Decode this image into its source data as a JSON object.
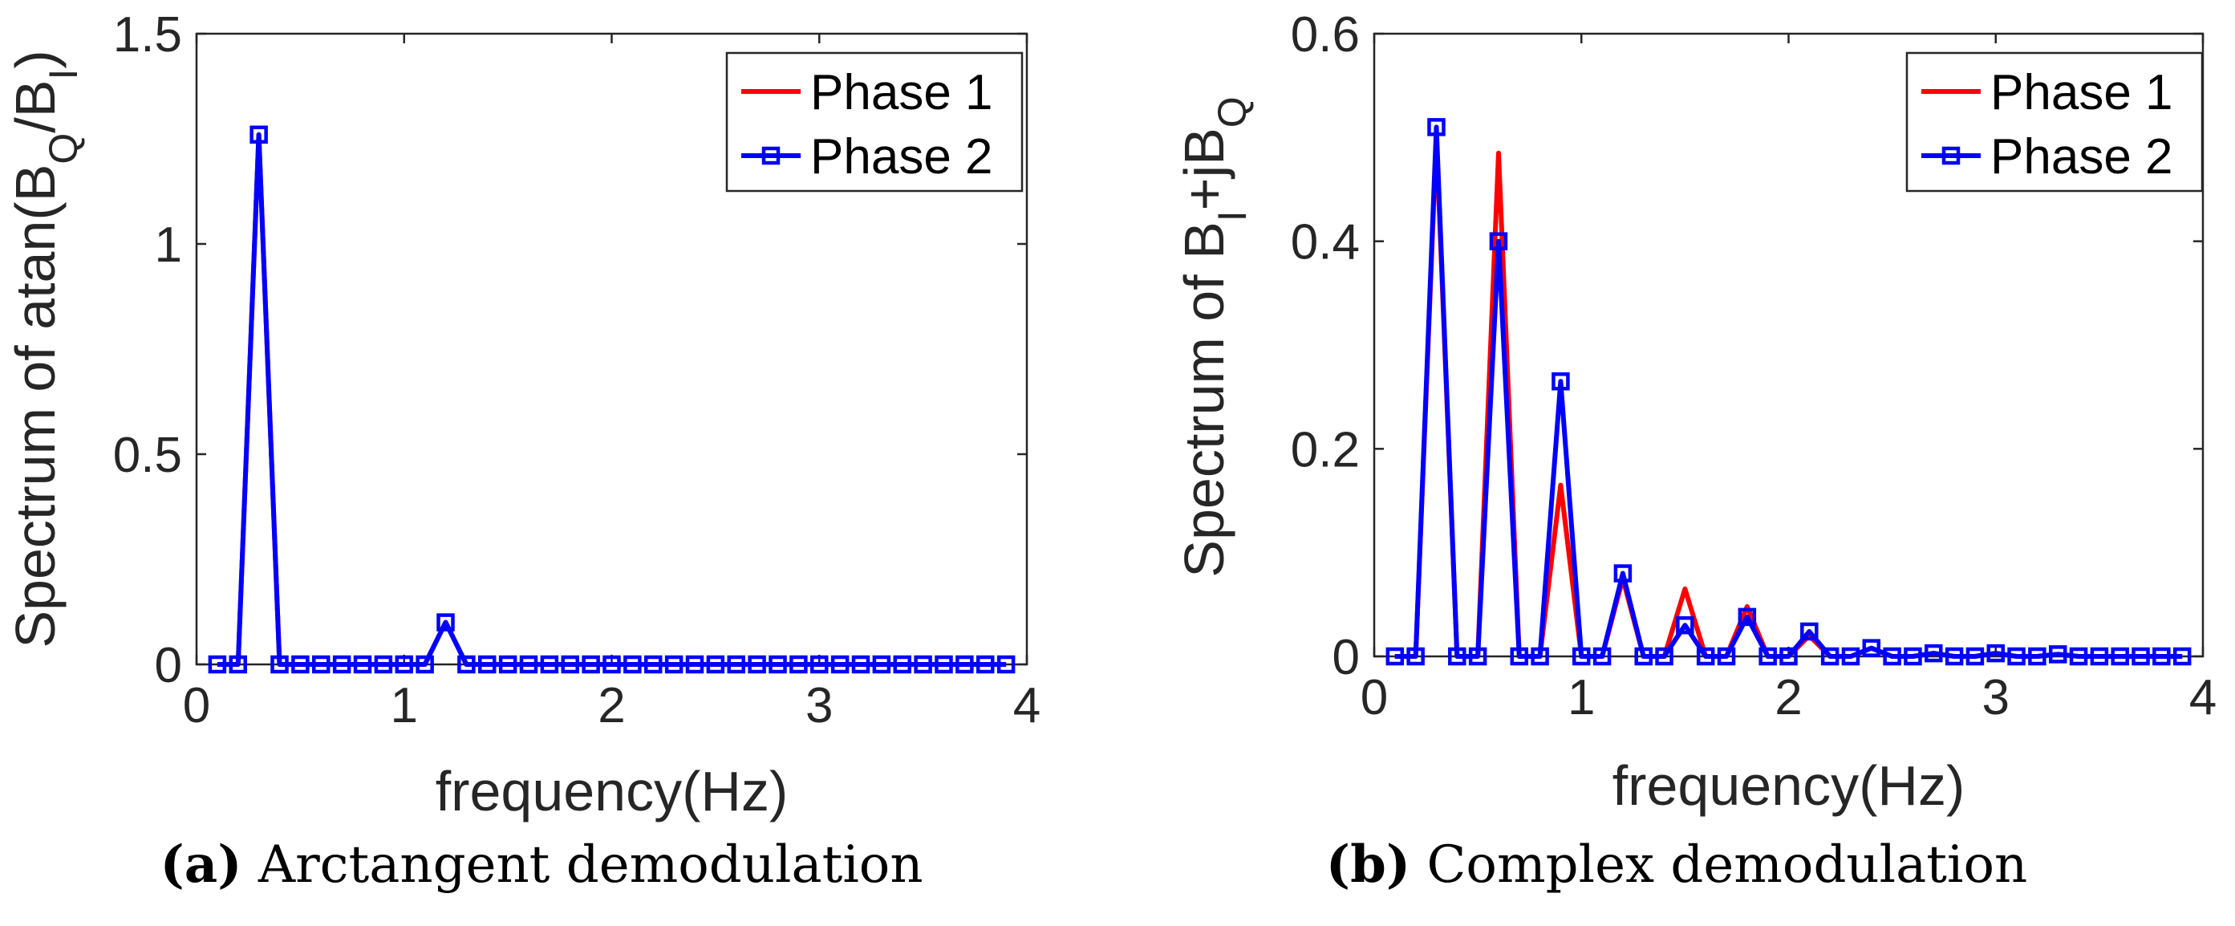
{
  "chart_data": [
    {
      "type": "line",
      "panel": "a",
      "title": "",
      "xlabel": "frequency(Hz)",
      "ylabel_parts": {
        "pre": "Spectrum of atan(B",
        "sub1": "Q",
        "mid": "/B",
        "sub2": "I",
        "post": ")"
      },
      "xlim": [
        0,
        4
      ],
      "ylim": [
        0,
        1.5
      ],
      "xticks": [
        0,
        1,
        2,
        3,
        4
      ],
      "xtick_labels": [
        "0",
        "1",
        "2",
        "3",
        "4"
      ],
      "yticks": [
        0,
        0.5,
        1,
        1.5
      ],
      "ytick_labels": [
        "0",
        "0.5",
        "1",
        "1.5"
      ],
      "grid": false,
      "legend_position": "top-right",
      "x": [
        0.1,
        0.2,
        0.3,
        0.4,
        0.5,
        0.6,
        0.7,
        0.8,
        0.9,
        1.0,
        1.1,
        1.2,
        1.3,
        1.4,
        1.5,
        1.6,
        1.7,
        1.8,
        1.9,
        2.0,
        2.1,
        2.2,
        2.3,
        2.4,
        2.5,
        2.6,
        2.7,
        2.8,
        2.9,
        3.0,
        3.1,
        3.2,
        3.3,
        3.4,
        3.5,
        3.6,
        3.7,
        3.8,
        3.9
      ],
      "series": [
        {
          "name": "Phase 1",
          "color": "#ff0000",
          "marker": "none",
          "values": [
            0,
            0,
            1.26,
            0,
            0,
            0,
            0,
            0,
            0,
            0,
            0,
            0.1,
            0,
            0,
            0,
            0,
            0,
            0,
            0,
            0,
            0,
            0,
            0,
            0,
            0,
            0,
            0,
            0,
            0,
            0,
            0,
            0,
            0,
            0,
            0,
            0,
            0,
            0,
            0
          ]
        },
        {
          "name": "Phase 2",
          "color": "#0000ff",
          "marker": "square",
          "values": [
            0,
            0,
            1.26,
            0,
            0,
            0,
            0,
            0,
            0,
            0,
            0,
            0.1,
            0,
            0,
            0,
            0,
            0,
            0,
            0,
            0,
            0,
            0,
            0,
            0,
            0,
            0,
            0,
            0,
            0,
            0,
            0,
            0,
            0,
            0,
            0,
            0,
            0,
            0,
            0
          ]
        }
      ]
    },
    {
      "type": "line",
      "panel": "b",
      "title": "",
      "xlabel": "frequency(Hz)",
      "ylabel_parts": {
        "pre": "Spectrum of B",
        "sub1": "I",
        "mid": "+jB",
        "sub2": "Q",
        "post": ""
      },
      "xlim": [
        0,
        4
      ],
      "ylim": [
        0,
        0.6
      ],
      "xticks": [
        0,
        1,
        2,
        3,
        4
      ],
      "xtick_labels": [
        "0",
        "1",
        "2",
        "3",
        "4"
      ],
      "yticks": [
        0,
        0.2,
        0.4,
        0.6
      ],
      "ytick_labels": [
        "0",
        "0.2",
        "0.4",
        "0.6"
      ],
      "grid": false,
      "legend_position": "top-right",
      "x": [
        0.1,
        0.2,
        0.3,
        0.4,
        0.5,
        0.6,
        0.7,
        0.8,
        0.9,
        1.0,
        1.1,
        1.2,
        1.3,
        1.4,
        1.5,
        1.6,
        1.7,
        1.8,
        1.9,
        2.0,
        2.1,
        2.2,
        2.3,
        2.4,
        2.5,
        2.6,
        2.7,
        2.8,
        2.9,
        3.0,
        3.1,
        3.2,
        3.3,
        3.4,
        3.5,
        3.6,
        3.7,
        3.8,
        3.9
      ],
      "series": [
        {
          "name": "Phase 1",
          "color": "#ff0000",
          "marker": "none",
          "values": [
            0,
            0,
            0.5,
            0,
            0,
            0.485,
            0,
            0,
            0.165,
            0,
            0,
            0.075,
            0,
            0,
            0.065,
            0,
            0,
            0.048,
            0,
            0,
            0.02,
            0,
            0,
            0.008,
            0,
            0,
            0.003,
            0,
            0,
            0.003,
            0,
            0,
            0.002,
            0,
            0,
            0,
            0,
            0,
            0
          ]
        },
        {
          "name": "Phase 2",
          "color": "#0000ff",
          "marker": "square",
          "values": [
            0,
            0,
            0.51,
            0,
            0,
            0.4,
            0,
            0,
            0.265,
            0,
            0,
            0.08,
            0,
            0,
            0.03,
            0,
            0,
            0.038,
            0,
            0,
            0.024,
            0,
            0,
            0.008,
            0,
            0,
            0.003,
            0,
            0,
            0.003,
            0,
            0,
            0.002,
            0,
            0,
            0,
            0,
            0,
            0
          ]
        }
      ]
    }
  ],
  "captions": [
    {
      "label": "(a)",
      "text": " Arctangent demodulation"
    },
    {
      "label": "(b)",
      "text": " Complex demodulation"
    }
  ]
}
